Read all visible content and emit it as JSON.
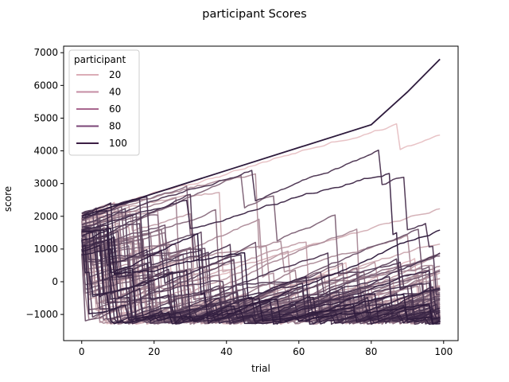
{
  "chart_data": {
    "type": "line",
    "title": "participant Scores",
    "xlabel": "trial",
    "ylabel": "score",
    "xlim": [
      -5,
      104
    ],
    "ylim": [
      -1800,
      7200
    ],
    "xticks": [
      0,
      20,
      40,
      60,
      80,
      100
    ],
    "yticks": [
      -1000,
      0,
      1000,
      2000,
      3000,
      4000,
      5000,
      6000,
      7000
    ],
    "xtick_labels": [
      "0",
      "20",
      "40",
      "60",
      "80",
      "100"
    ],
    "ytick_labels": [
      "−1000",
      "0",
      "1000",
      "2000",
      "3000",
      "4000",
      "5000",
      "6000",
      "7000"
    ],
    "grid": false,
    "legend": {
      "title": "participant",
      "placement": "top-left",
      "entries": [
        {
          "label": "20",
          "color": "#dbadb7"
        },
        {
          "label": "40",
          "color": "#c58ca3"
        },
        {
          "label": "60",
          "color": "#a8678e"
        },
        {
          "label": "80",
          "color": "#7a4477"
        },
        {
          "label": "100",
          "color": "#3b1f45"
        }
      ]
    },
    "series_count": 100,
    "x_count": 100,
    "series_color_range": [
      "#e8c3c6",
      "#2d1a3c"
    ],
    "value_range_at_start": [
      800,
      2100
    ],
    "value_range_at_end": [
      -600,
      6800
    ],
    "highlighted_series": [
      {
        "participant": 100,
        "color": "#2d1a3c",
        "x": [
          0,
          20,
          40,
          60,
          80,
          90,
          99
        ],
        "values": [
          2000,
          2700,
          3400,
          4100,
          4800,
          5800,
          6800
        ]
      }
    ]
  }
}
